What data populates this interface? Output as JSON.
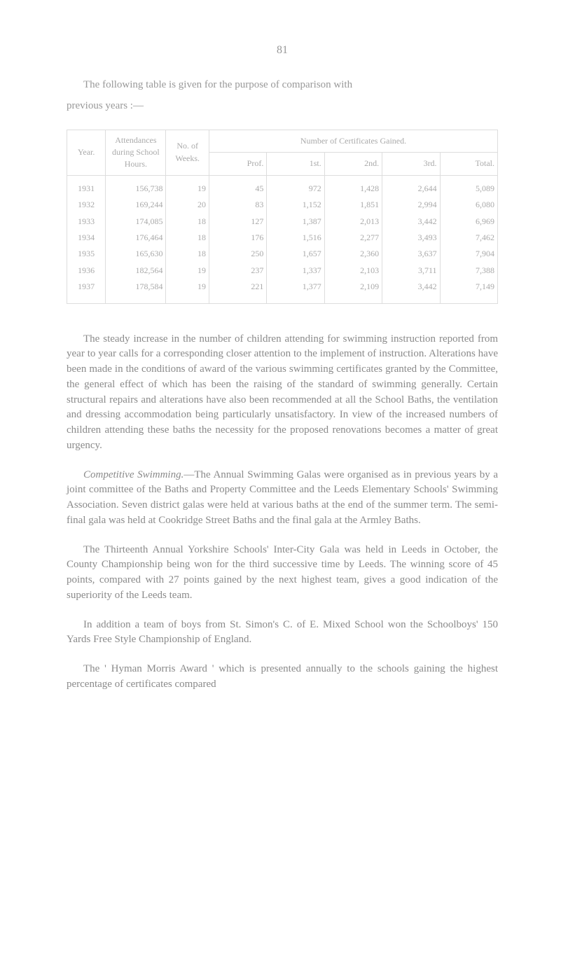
{
  "page_number": "81",
  "intro_line1": "The following table is given for the purpose of comparison with",
  "intro_line2": "previous years :—",
  "table": {
    "headers": {
      "year": "Year.",
      "attendances": "Attendances during School Hours.",
      "weeks": "No. of Weeks.",
      "certificates": "Number of Certificates Gained.",
      "prof": "Prof.",
      "first": "1st.",
      "second": "2nd.",
      "third": "3rd.",
      "total": "Total."
    },
    "rows": [
      {
        "year": "1931",
        "att": "156,738",
        "weeks": "19",
        "prof": "45",
        "first": "972",
        "second": "1,428",
        "third": "2,644",
        "total": "5,089"
      },
      {
        "year": "1932",
        "att": "169,244",
        "weeks": "20",
        "prof": "83",
        "first": "1,152",
        "second": "1,851",
        "third": "2,994",
        "total": "6,080"
      },
      {
        "year": "1933",
        "att": "174,085",
        "weeks": "18",
        "prof": "127",
        "first": "1,387",
        "second": "2,013",
        "third": "3,442",
        "total": "6,969"
      },
      {
        "year": "1934",
        "att": "176,464",
        "weeks": "18",
        "prof": "176",
        "first": "1,516",
        "second": "2,277",
        "third": "3,493",
        "total": "7,462"
      },
      {
        "year": "1935",
        "att": "165,630",
        "weeks": "18",
        "prof": "250",
        "first": "1,657",
        "second": "2,360",
        "third": "3,637",
        "total": "7,904"
      },
      {
        "year": "1936",
        "att": "182,564",
        "weeks": "19",
        "prof": "237",
        "first": "1,337",
        "second": "2,103",
        "third": "3,711",
        "total": "7,388"
      },
      {
        "year": "1937",
        "att": "178,584",
        "weeks": "19",
        "prof": "221",
        "first": "1,377",
        "second": "2,109",
        "third": "3,442",
        "total": "7,149"
      }
    ]
  },
  "para1": "The steady increase in the number of children attending for swimming instruction reported from year to year calls for a corres­ponding closer attention to the implement of instruction. Alterations have been made in the conditions of award of the various swimming certificates granted by the Committee, the general effect of which has been the raising of the standard of swimming generally. Certain structural repairs and alterations have also been recommended at all the School Baths, the ventilation and dressing accommodation being particularly unsatisfactory. In view of the increased numbers of children attending these baths the necessity for the proposed renovations becomes a matter of great urgency.",
  "para2_lead": "Competitive Swimming.",
  "para2": "—The Annual Swimming Galas were organised as in previous years by a joint committee of the Baths and Property Committee and the Leeds Elementary Schools' Swimming Association. Seven district galas were held at various baths at the end of the summer term. The semi-final gala was held at Cookridge Street Baths and the final gala at the Armley Baths.",
  "para3": "The Thirteenth Annual Yorkshire Schools' Inter-City Gala was held in Leeds in October, the County Championship being won for the third successive time by Leeds. The winning score of 45 points, compared with 27 points gained by the next highest team, gives a good indication of the superiority of the Leeds team.",
  "para4": "In addition a team of boys from St. Simon's C. of E. Mixed School won the Schoolboys' 150 Yards Free Style Championship of England.",
  "para5": "The ' Hyman Morris Award ' which is presented annually to the schools gaining the highest percentage of certificates compared"
}
